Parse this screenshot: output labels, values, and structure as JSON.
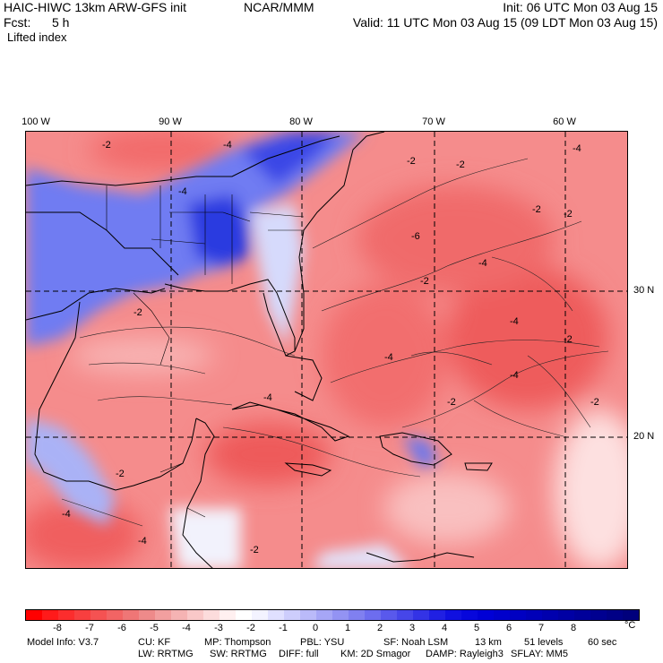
{
  "header": {
    "title": "HAIC-HIWC 13km ARW-GFS init",
    "agency": "NCAR/MMM",
    "init": "Init: 06 UTC Mon 03 Aug 15",
    "fcst_label": "Fcst:",
    "fcst_value": "5 h",
    "valid": "Valid: 11 UTC Mon 03 Aug 15 (09 LDT Mon 03 Aug 15)",
    "field": "Lifted index"
  },
  "map": {
    "lon_labels": [
      "100 W",
      "90 W",
      "80 W",
      "70 W",
      "60 W"
    ],
    "lat_labels": [
      "30 N",
      "20 N"
    ],
    "contour_labels": [
      "-2",
      "-4",
      "-2",
      "-4",
      "-2",
      "-4",
      "-2",
      "-4",
      "-2",
      "-6",
      "-2",
      "-4",
      "-2",
      "-4",
      "-2",
      "-4",
      "-2",
      "-4",
      "-2",
      "-4",
      "-4",
      "-2",
      "-2"
    ]
  },
  "colorbar": {
    "labels": [
      "-8",
      "-7",
      "-6",
      "-5",
      "-4",
      "-3",
      "-2",
      "-1",
      "0",
      "1",
      "2",
      "3",
      "4",
      "5",
      "6",
      "7",
      "8"
    ],
    "unit": "°C",
    "colors": [
      "#ff0000",
      "#ff1a1a",
      "#fc2d2d",
      "#f83f3f",
      "#f55252",
      "#f26464",
      "#ef7676",
      "#ee8a8a",
      "#f29f9f",
      "#f5b3b3",
      "#f9c8c8",
      "#fcdcdc",
      "#fff0f0",
      "#ffffff",
      "#f3f3ff",
      "#e0e0ff",
      "#cdcdfc",
      "#babaf9",
      "#a6a6f6",
      "#9393f3",
      "#8080f0",
      "#6d6def",
      "#5959ec",
      "#4646e9",
      "#3333e6",
      "#2020e3",
      "#1010e0",
      "#0707dc",
      "#0000d6",
      "#0000cc",
      "#0000c2",
      "#0000b8",
      "#0000ae",
      "#0000a4",
      "#00009a",
      "#000090",
      "#000086",
      "#00007c"
    ]
  },
  "footer": {
    "line1": [
      "Model Info: V3.7",
      "CU: KF",
      "MP: Thompson",
      "PBL: YSU",
      "SF: Noah LSM",
      "13 km",
      "51 levels",
      "60 sec"
    ],
    "line2": [
      "LW: RRTMG",
      "SW: RRTMG",
      "DIFF: full",
      "KM: 2D Smagor",
      "DAMP: Rayleigh3",
      "SFLAY: MM5"
    ]
  }
}
